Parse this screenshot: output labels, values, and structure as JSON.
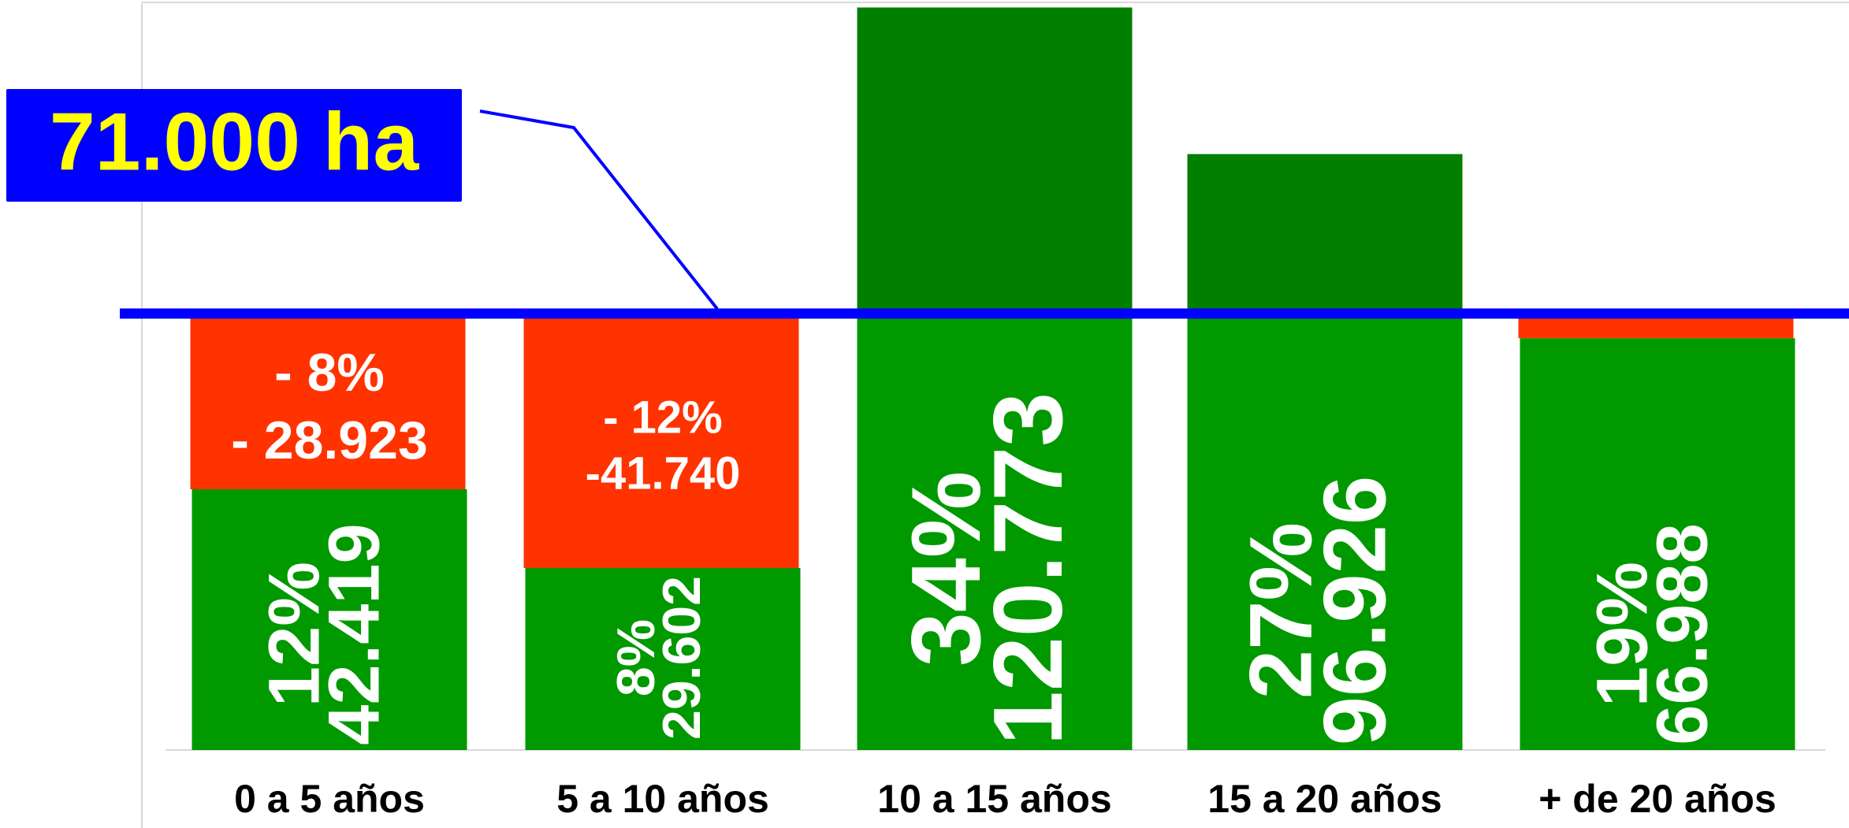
{
  "chart_data": {
    "type": "bar",
    "categories": [
      "0 a 5 años",
      "5 a 10 años",
      "10 a 15 años",
      "15 a 20 años",
      "+ de 20 años"
    ],
    "values": [
      42419,
      29602,
      120773,
      96926,
      66988
    ],
    "value_labels": [
      "42.419",
      "29.602",
      "120.773",
      "96.926",
      "66.988"
    ],
    "percent_labels": [
      "12%",
      "8%",
      "34%",
      "27%",
      "19%"
    ],
    "deficits": [
      -28923,
      -41740,
      null,
      null,
      null
    ],
    "deficit_labels": [
      "- 28.923",
      "-41.740",
      null,
      null,
      null
    ],
    "deficit_percent_labels": [
      "- 8%",
      "- 12%",
      null,
      null,
      null
    ],
    "reference": {
      "value": 71000,
      "label": "71.000 ha"
    },
    "ylim": [
      0,
      122000
    ],
    "color": "#009900",
    "excess_color": "#007f00",
    "deficit_color": "#ff3300",
    "reference_color": "#0000ff",
    "reference_label_color": "#ffff00"
  }
}
